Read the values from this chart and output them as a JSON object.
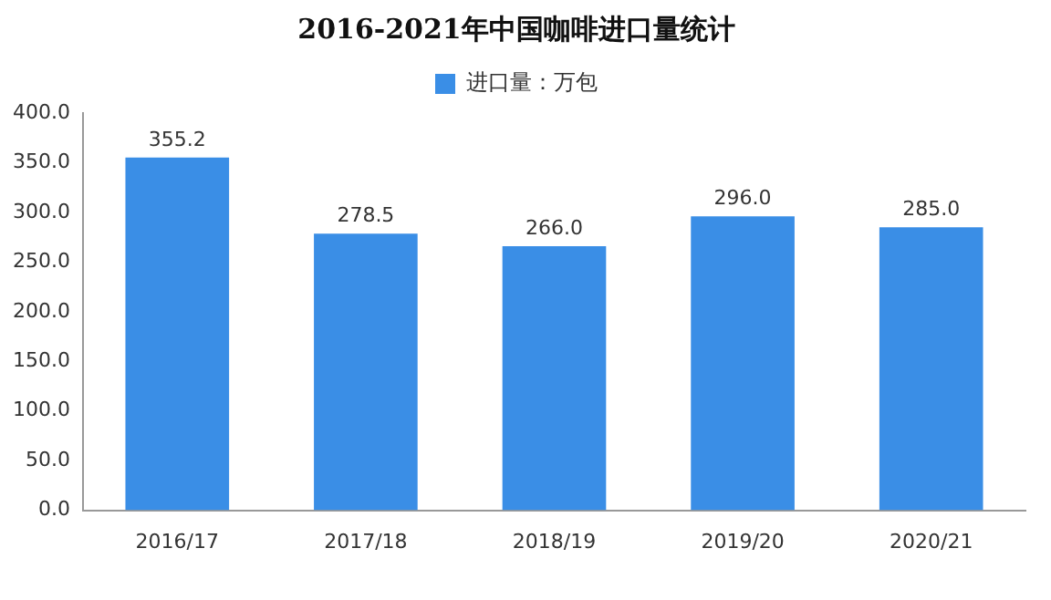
{
  "chart_data": {
    "type": "bar",
    "title": "2016-2021年中国咖啡进口量统计",
    "categories": [
      "2016/17",
      "2017/18",
      "2018/19",
      "2019/20",
      "2020/21"
    ],
    "series": [
      {
        "name": "进口量：万包",
        "color": "#3a8ee6",
        "values": [
          355.2,
          278.5,
          266.0,
          296.0,
          285.0
        ]
      }
    ],
    "ylim": [
      0,
      400
    ],
    "yticks": [
      {
        "value": 0,
        "label": "0.0"
      },
      {
        "value": 50,
        "label": "50.0"
      },
      {
        "value": 100,
        "label": "100.0"
      },
      {
        "value": 150,
        "label": "150.0"
      },
      {
        "value": 200,
        "label": "200.0"
      },
      {
        "value": 250,
        "label": "250.0"
      },
      {
        "value": 300,
        "label": "300.0"
      },
      {
        "value": 350,
        "label": "350.0"
      },
      {
        "value": 400,
        "label": "400.0"
      }
    ],
    "value_labels": [
      "355.2",
      "278.5",
      "266.0",
      "296.0",
      "285.0"
    ],
    "grid": false,
    "legend": "top"
  }
}
